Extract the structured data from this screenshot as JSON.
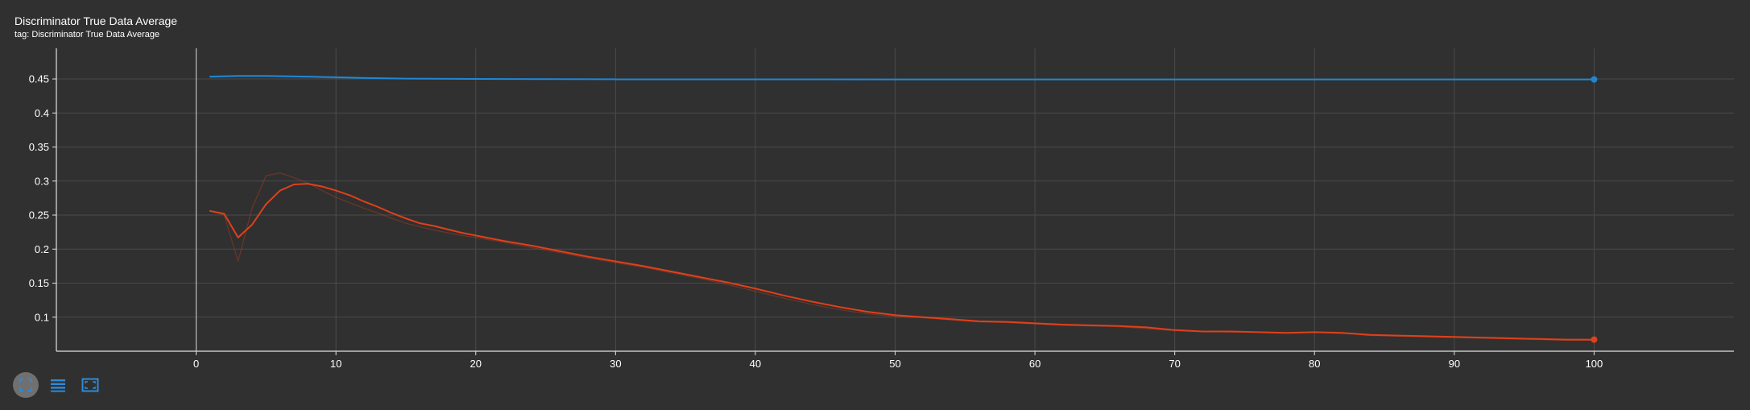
{
  "card": {
    "title": "Discriminator True Data Average",
    "subtitle": "tag: Discriminator True Data Average"
  },
  "toolbar": {
    "buttons": [
      {
        "icon": "fit-domain-icon",
        "active": true
      },
      {
        "icon": "list-icon",
        "active": false
      },
      {
        "icon": "expand-icon",
        "active": false
      }
    ]
  },
  "colors": {
    "background": "#303030",
    "blue_series": "#1f86d6",
    "red_series": "#e0401a",
    "grid": "#4a4a4a",
    "axis": "#e0e0e0"
  },
  "chart_data": {
    "type": "line",
    "title": "Discriminator True Data Average",
    "xlabel": "",
    "ylabel": "",
    "xlim": [
      -10,
      110
    ],
    "ylim": [
      0.05,
      0.495
    ],
    "x_ticks": [
      0,
      10,
      20,
      30,
      40,
      50,
      60,
      70,
      80,
      90,
      100
    ],
    "y_ticks": [
      0.1,
      0.15,
      0.2,
      0.25,
      0.3,
      0.35,
      0.4,
      0.45
    ],
    "y_tick_labels": [
      "0.1",
      "0.15",
      "0.2",
      "0.25",
      "0.3",
      "0.35",
      "0.4",
      "0.45"
    ],
    "grid": true,
    "series": [
      {
        "color": "#1f86d6",
        "smoothed": {
          "x": [
            1,
            3,
            5,
            8,
            10,
            12,
            15,
            20,
            30,
            40,
            50,
            60,
            70,
            80,
            90,
            100
          ],
          "y": [
            0.4535,
            0.4545,
            0.4545,
            0.4535,
            0.4525,
            0.4515,
            0.4505,
            0.45,
            0.4495,
            0.4495,
            0.4493,
            0.4493,
            0.4493,
            0.4493,
            0.4493,
            0.4493
          ]
        },
        "raw": {
          "x": [
            1,
            3,
            5,
            8,
            10,
            12,
            15,
            20,
            30,
            40,
            50,
            60,
            70,
            80,
            90,
            100
          ],
          "y": [
            0.4525,
            0.4535,
            0.4535,
            0.4525,
            0.4515,
            0.4508,
            0.4502,
            0.4498,
            0.4495,
            0.4494,
            0.4493,
            0.4493,
            0.4493,
            0.4493,
            0.4493,
            0.4493
          ]
        }
      },
      {
        "color": "#e0401a",
        "smoothed": {
          "x": [
            1,
            2,
            3,
            4,
            5,
            6,
            7,
            8,
            9,
            10,
            11,
            12,
            13,
            14,
            15,
            16,
            17,
            18,
            19,
            20,
            22,
            24,
            26,
            28,
            30,
            32,
            34,
            36,
            38,
            40,
            42,
            44,
            46,
            48,
            50,
            52,
            54,
            56,
            58,
            60,
            62,
            64,
            66,
            68,
            70,
            72,
            74,
            76,
            78,
            80,
            82,
            84,
            86,
            88,
            90,
            92,
            94,
            96,
            98,
            100
          ],
          "y": [
            0.256,
            0.252,
            0.217,
            0.236,
            0.266,
            0.286,
            0.295,
            0.296,
            0.292,
            0.286,
            0.279,
            0.27,
            0.262,
            0.253,
            0.245,
            0.238,
            0.234,
            0.229,
            0.224,
            0.22,
            0.212,
            0.205,
            0.197,
            0.189,
            0.182,
            0.175,
            0.167,
            0.159,
            0.151,
            0.142,
            0.132,
            0.123,
            0.115,
            0.108,
            0.103,
            0.1,
            0.097,
            0.094,
            0.093,
            0.091,
            0.089,
            0.088,
            0.087,
            0.085,
            0.081,
            0.079,
            0.079,
            0.078,
            0.077,
            0.078,
            0.077,
            0.074,
            0.073,
            0.072,
            0.071,
            0.07,
            0.069,
            0.068,
            0.067,
            0.067
          ]
        },
        "raw": {
          "x": [
            1,
            2,
            3,
            4,
            5,
            6,
            7,
            8,
            9,
            10,
            11,
            12,
            13,
            14,
            15,
            16,
            17,
            18,
            19,
            20,
            22,
            24,
            26,
            28,
            30,
            32,
            34,
            36,
            38,
            40,
            42,
            44,
            46,
            48,
            50,
            52,
            54,
            56,
            58,
            60,
            62,
            64,
            66,
            68,
            70,
            72,
            74,
            76,
            78,
            80,
            82,
            84,
            86,
            88,
            90,
            92,
            94,
            96,
            98,
            100
          ],
          "y": [
            0.256,
            0.25,
            0.182,
            0.26,
            0.308,
            0.312,
            0.305,
            0.297,
            0.286,
            0.276,
            0.268,
            0.26,
            0.253,
            0.245,
            0.238,
            0.233,
            0.228,
            0.224,
            0.22,
            0.217,
            0.21,
            0.202,
            0.195,
            0.187,
            0.18,
            0.173,
            0.165,
            0.157,
            0.148,
            0.138,
            0.128,
            0.119,
            0.111,
            0.105,
            0.101,
            0.099,
            0.096,
            0.093,
            0.092,
            0.09,
            0.088,
            0.087,
            0.086,
            0.083,
            0.08,
            0.079,
            0.078,
            0.078,
            0.077,
            0.078,
            0.076,
            0.073,
            0.072,
            0.071,
            0.07,
            0.069,
            0.068,
            0.067,
            0.066,
            0.066
          ]
        }
      }
    ]
  }
}
